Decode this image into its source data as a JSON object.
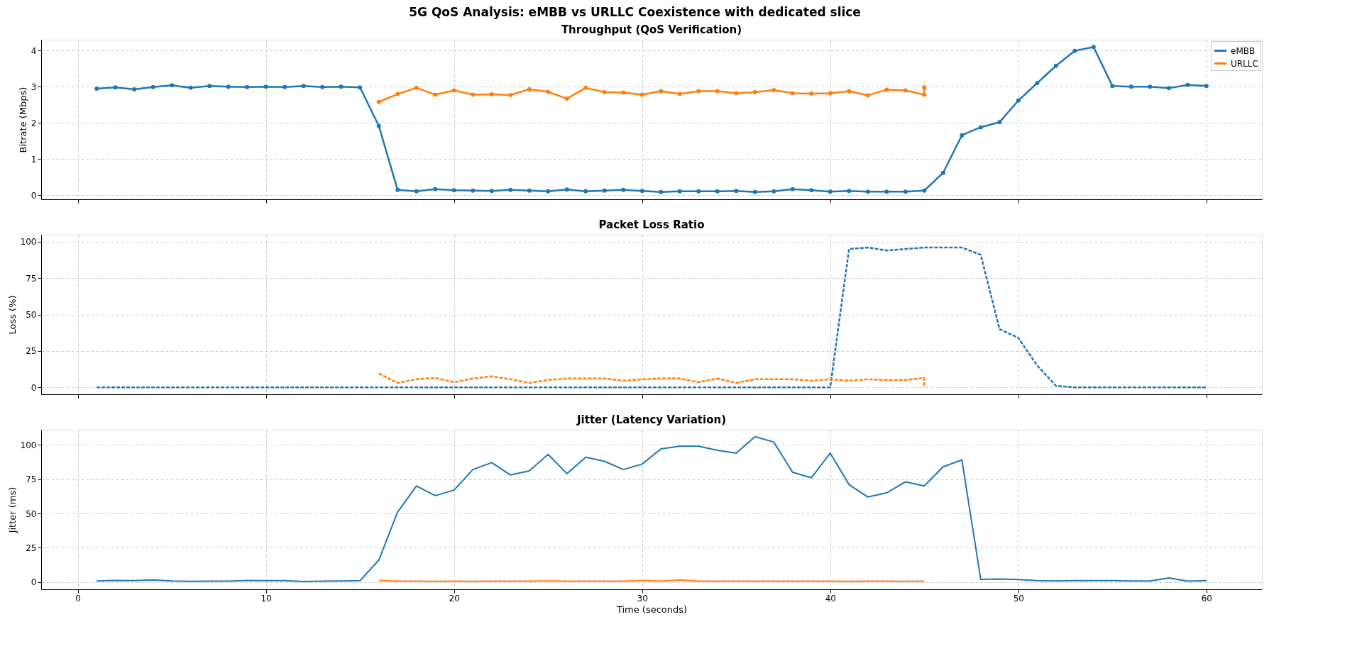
{
  "chart_data": [
    {
      "type": "line",
      "title": "Throughput (QoS Verification)",
      "annotations": [
        "5G QoS Analysis: eMBB vs URLLC Coexistence with dedicated slice"
      ],
      "ylabel": "Bitrate (Mbps)",
      "xlim": [
        -1.95,
        62.95
      ],
      "xticks": [
        0,
        10,
        20,
        30,
        40,
        50,
        60
      ],
      "ylim": [
        -0.11,
        4.3
      ],
      "yticks": [
        0,
        1,
        2,
        3,
        4
      ],
      "grid": true,
      "legend": "top right",
      "marker": "circle",
      "line_style": "solid",
      "tick_labels": "y",
      "series": [
        {
          "name": "eMBB",
          "color": "#1f77b4",
          "x": [
            1,
            2,
            3,
            4,
            5,
            6,
            7,
            8,
            9,
            10,
            11,
            12,
            13,
            14,
            15,
            16,
            17,
            18,
            19,
            20,
            21,
            22,
            23,
            24,
            25,
            26,
            27,
            28,
            29,
            30,
            31,
            32,
            33,
            34,
            35,
            36,
            37,
            38,
            39,
            40,
            41,
            42,
            43,
            44,
            45,
            46,
            47,
            48,
            49,
            50,
            51,
            52,
            53,
            54,
            55,
            56,
            57,
            58,
            59,
            60
          ],
          "values": [
            2.95,
            2.98,
            2.93,
            2.99,
            3.04,
            2.97,
            3.02,
            3.0,
            2.99,
            3.0,
            2.99,
            3.02,
            2.99,
            3.0,
            2.98,
            1.92,
            0.15,
            0.11,
            0.17,
            0.14,
            0.13,
            0.12,
            0.15,
            0.13,
            0.11,
            0.16,
            0.11,
            0.13,
            0.15,
            0.12,
            0.09,
            0.11,
            0.11,
            0.11,
            0.12,
            0.09,
            0.11,
            0.17,
            0.14,
            0.1,
            0.12,
            0.1,
            0.1,
            0.1,
            0.13,
            0.62,
            1.66,
            1.88,
            2.02,
            2.62,
            3.1,
            3.58,
            3.99,
            4.1,
            3.02,
            3.0,
            3.0,
            2.96,
            3.05,
            3.02
          ]
        },
        {
          "name": "URLLC",
          "color": "#ff7f0e",
          "x": [
            16,
            17,
            18,
            19,
            20,
            21,
            22,
            23,
            24,
            25,
            26,
            27,
            28,
            29,
            30,
            31,
            32,
            33,
            34,
            35,
            36,
            37,
            38,
            39,
            40,
            41,
            42,
            43,
            44,
            45,
            45
          ],
          "values": [
            2.58,
            2.8,
            2.97,
            2.78,
            2.9,
            2.78,
            2.79,
            2.77,
            2.93,
            2.86,
            2.67,
            2.97,
            2.85,
            2.84,
            2.78,
            2.88,
            2.8,
            2.88,
            2.88,
            2.82,
            2.85,
            2.91,
            2.82,
            2.81,
            2.82,
            2.88,
            2.76,
            2.92,
            2.9,
            2.78,
            2.98
          ]
        }
      ]
    },
    {
      "type": "line",
      "title": "Packet Loss Ratio",
      "ylabel": "Loss (%)",
      "xlim": [
        -1.95,
        62.95
      ],
      "xticks": [
        0,
        10,
        20,
        30,
        40,
        50,
        60
      ],
      "ylim": [
        -4.8,
        104.8
      ],
      "yticks": [
        0,
        25,
        50,
        75,
        100
      ],
      "grid": true,
      "marker": "none",
      "line_style": "dashed",
      "tick_labels": "y",
      "series": [
        {
          "color": "#1f77b4",
          "x": [
            1,
            2,
            3,
            4,
            5,
            6,
            7,
            8,
            9,
            10,
            11,
            12,
            13,
            14,
            15,
            16,
            17,
            18,
            19,
            20,
            21,
            22,
            23,
            24,
            25,
            26,
            27,
            28,
            29,
            30,
            31,
            32,
            33,
            34,
            35,
            36,
            37,
            38,
            39,
            40,
            41,
            42,
            43,
            44,
            45,
            46,
            47,
            48,
            49,
            50,
            51,
            52,
            53,
            54,
            55,
            56,
            57,
            58,
            59,
            60
          ],
          "values": [
            0,
            0,
            0,
            0,
            0,
            0,
            0,
            0,
            0,
            0,
            0,
            0,
            0,
            0,
            0,
            0,
            0,
            0,
            0,
            0,
            0,
            0,
            0,
            0,
            0,
            0,
            0,
            0,
            0,
            0,
            0,
            0,
            0,
            0,
            0,
            0,
            0,
            0,
            0,
            0,
            95,
            96,
            94,
            95,
            96,
            96,
            96,
            91,
            40,
            34,
            15,
            1,
            0,
            0,
            0,
            0,
            0,
            0,
            0,
            0
          ]
        },
        {
          "color": "#ff7f0e",
          "x": [
            16,
            17,
            18,
            19,
            20,
            21,
            22,
            23,
            24,
            25,
            26,
            27,
            28,
            29,
            30,
            31,
            32,
            33,
            34,
            35,
            36,
            37,
            38,
            39,
            40,
            41,
            42,
            43,
            44,
            45,
            45
          ],
          "values": [
            9.5,
            3,
            5.5,
            6.5,
            3.5,
            6,
            7.5,
            5.5,
            3,
            5,
            6,
            6,
            6,
            4.5,
            5.5,
            6,
            6,
            3.5,
            6,
            3,
            5.5,
            5.5,
            5.5,
            4.5,
            5.5,
            4.5,
            5.5,
            5,
            5,
            6.5,
            0
          ]
        }
      ]
    },
    {
      "type": "line",
      "title": "Jitter (Latency Variation)",
      "xlabel": "Time (seconds)",
      "ylabel": "Jitter (ms)",
      "xlim": [
        -1.95,
        62.95
      ],
      "xticks": [
        0,
        10,
        20,
        30,
        40,
        50,
        60
      ],
      "ylim": [
        -5.3,
        111
      ],
      "yticks": [
        0,
        25,
        50,
        75,
        100
      ],
      "grid": true,
      "marker": "none",
      "line_style": "solid",
      "series": [
        {
          "color": "#1f77b4",
          "x": [
            1,
            2,
            3,
            4,
            5,
            6,
            7,
            8,
            9,
            10,
            11,
            12,
            13,
            14,
            15,
            16,
            17,
            18,
            19,
            20,
            21,
            22,
            23,
            24,
            25,
            26,
            27,
            28,
            29,
            30,
            31,
            32,
            33,
            34,
            35,
            36,
            37,
            38,
            39,
            40,
            41,
            42,
            43,
            44,
            45,
            46,
            47,
            48,
            49,
            50,
            51,
            52,
            53,
            54,
            55,
            56,
            57,
            58,
            59,
            60
          ],
          "values": [
            0.8,
            1.2,
            1,
            1.5,
            0.8,
            0.5,
            0.6,
            0.6,
            1.2,
            1,
            1,
            0.4,
            0.6,
            0.8,
            1,
            16,
            51,
            70,
            63,
            67,
            82,
            87,
            78,
            81,
            93,
            79,
            91,
            88,
            82,
            86,
            97,
            99,
            99,
            96,
            94,
            106,
            102,
            80,
            76,
            94,
            71,
            62,
            65,
            73,
            70,
            84,
            89,
            2,
            2.2,
            1.8,
            1,
            0.8,
            1,
            1,
            1,
            0.8,
            0.8,
            3,
            0.6,
            1
          ]
        },
        {
          "color": "#ff7f0e",
          "x": [
            16,
            17,
            18,
            19,
            20,
            21,
            22,
            23,
            24,
            25,
            26,
            27,
            28,
            29,
            30,
            31,
            32,
            33,
            34,
            35,
            36,
            37,
            38,
            39,
            40,
            41,
            42,
            43,
            44,
            45
          ],
          "values": [
            1.2,
            0.7,
            0.6,
            0.5,
            0.6,
            0.5,
            0.6,
            0.6,
            0.7,
            0.8,
            0.6,
            0.6,
            0.7,
            0.7,
            1.2,
            0.6,
            1.6,
            0.6,
            0.7,
            0.7,
            0.6,
            0.6,
            0.7,
            0.7,
            0.6,
            0.5,
            0.6,
            0.6,
            0.5,
            0.6
          ]
        }
      ]
    }
  ]
}
